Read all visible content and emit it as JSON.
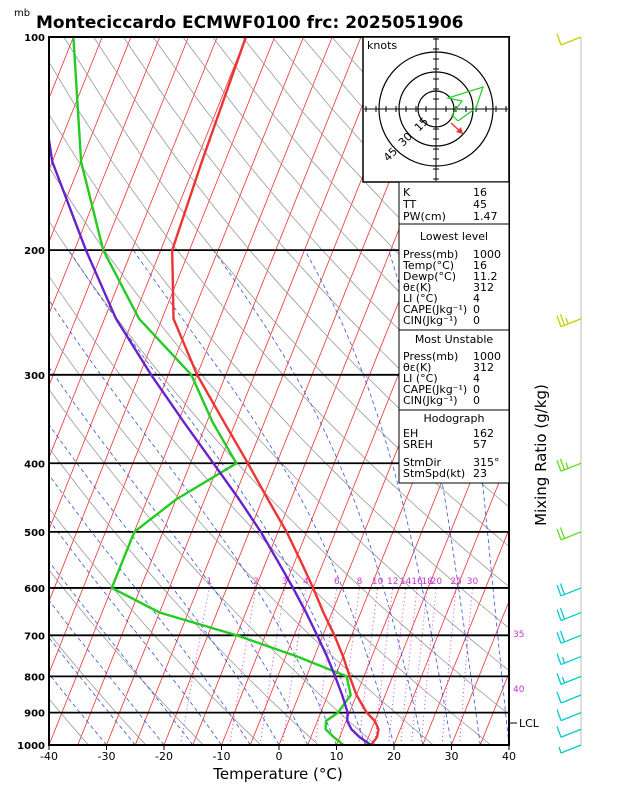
{
  "title": "Monteciccardo ECMWF0100  frc: 2025051906",
  "yunit": "mb",
  "xlabel": "Temperature (°C)",
  "right_label": "Mixing Ratio (g/kg)",
  "hodo_label": "knots",
  "hodo_rings": [
    "15",
    "30",
    "45"
  ],
  "lcl_label": "LCL",
  "indices": {
    "k_label": "K",
    "k": "16",
    "tt_label": "TT",
    "tt": "45",
    "pw_label": "PW(cm)",
    "pw": "1.47",
    "lowest_title": "Lowest level",
    "low_press_label": "Press(mb)",
    "low_press": "1000",
    "low_temp_label": "Temp(°C)",
    "low_temp": "16",
    "low_dewp_label": "Dewp(°C)",
    "low_dewp": "11.2",
    "low_theta_label": "θε(K)",
    "low_theta": "312",
    "low_li_label": "LI (°C)",
    "low_li": "4",
    "low_cape_label": "CAPE(Jkg⁻¹)",
    "low_cape": "0",
    "low_cin_label": "CIN(Jkg⁻¹)",
    "low_cin": "0",
    "mu_title": "Most Unstable",
    "mu_press_label": "Press(mb)",
    "mu_press": "1000",
    "mu_theta_label": "θε(K)",
    "mu_theta": "312",
    "mu_li_label": "LI (°C)",
    "mu_li": "4",
    "mu_cape_label": "CAPE(Jkg⁻¹)",
    "mu_cape": "0",
    "mu_cin_label": "CIN(Jkg⁻¹)",
    "mu_cin": "0",
    "hodo_title": "Hodograph",
    "eh_label": "EH",
    "eh": "162",
    "sreh_label": "SREH",
    "sreh": "57",
    "stmdir_label": "StmDir",
    "stmdir": "315°",
    "stmspd_label": "StmSpd(kt)",
    "stmspd": "23"
  },
  "colors": {
    "temperature": "#ee3333",
    "dewpoint": "#22cc22",
    "parcel": "#6622cc",
    "isotherm": "#ee3333",
    "dry_adiabat": "#999999",
    "moist_adiabat": "#3355dd",
    "mixing_ratio": "#cc33cc",
    "wind_low": "#00cccc",
    "wind_mid": "#66dd22",
    "wind_high": "#cccc00"
  },
  "chart_data": {
    "type": "skew-t",
    "xlim": [
      -40,
      40
    ],
    "ylim": [
      1000,
      100
    ],
    "log_pressure": true,
    "x_ticks": [
      "-40",
      "-30",
      "-20",
      "-10",
      "0",
      "10",
      "20",
      "30",
      "40"
    ],
    "pressure_ticks": [
      "100",
      "200",
      "300",
      "400",
      "500",
      "600",
      "700",
      "800",
      "900",
      "1000"
    ],
    "mixing_ratio_labels": [
      "1",
      "2",
      "3",
      "4",
      "6",
      "8",
      "10",
      "12",
      "14",
      "16",
      "18",
      "20",
      "25",
      "30"
    ],
    "isotherm_edge_labels": [
      "35",
      "40"
    ],
    "series": [
      {
        "name": "Temperature",
        "p": [
          1000,
          975,
          950,
          925,
          900,
          850,
          800,
          750,
          700,
          650,
          600,
          550,
          500,
          450,
          400,
          350,
          300,
          250,
          200,
          150,
          100
        ],
        "t": [
          16,
          16.5,
          16.2,
          15,
          13,
          10,
          7.5,
          5,
          2,
          -1.5,
          -5,
          -9,
          -13.5,
          -19,
          -25,
          -32,
          -40,
          -48,
          -53,
          -54,
          -55
        ]
      },
      {
        "name": "Dewpoint",
        "p": [
          1000,
          975,
          950,
          925,
          900,
          850,
          800,
          750,
          700,
          650,
          600,
          550,
          500,
          450,
          400,
          350,
          300,
          250,
          200,
          150,
          100
        ],
        "t": [
          11.2,
          9,
          7,
          6.5,
          8,
          9,
          7,
          -3,
          -15,
          -30,
          -40,
          -40,
          -40,
          -35,
          -27,
          -34,
          -41,
          -54,
          -65,
          -75,
          -85
        ]
      },
      {
        "name": "Parcel",
        "p": [
          1000,
          975,
          950,
          925,
          900,
          850,
          800,
          750,
          700,
          650,
          600,
          550,
          500,
          450,
          400,
          350,
          300,
          250,
          200,
          150,
          100
        ],
        "t": [
          16,
          13.5,
          11.5,
          10.2,
          9.7,
          7.5,
          5,
          2.2,
          -1,
          -4.5,
          -8.5,
          -13,
          -18,
          -24,
          -31,
          -39,
          -48,
          -58,
          -68,
          -80,
          -92
        ]
      }
    ],
    "wind_barbs_kt": [
      {
        "p": 1000,
        "speed": 5
      },
      {
        "p": 950,
        "speed": 10
      },
      {
        "p": 900,
        "speed": 10
      },
      {
        "p": 850,
        "speed": 10
      },
      {
        "p": 800,
        "speed": 15
      },
      {
        "p": 750,
        "speed": 15
      },
      {
        "p": 700,
        "speed": 20
      },
      {
        "p": 650,
        "speed": 20
      },
      {
        "p": 600,
        "speed": 20
      },
      {
        "p": 500,
        "speed": 20
      },
      {
        "p": 400,
        "speed": 25
      },
      {
        "p": 250,
        "speed": 25
      },
      {
        "p": 100,
        "speed": 10
      }
    ]
  }
}
